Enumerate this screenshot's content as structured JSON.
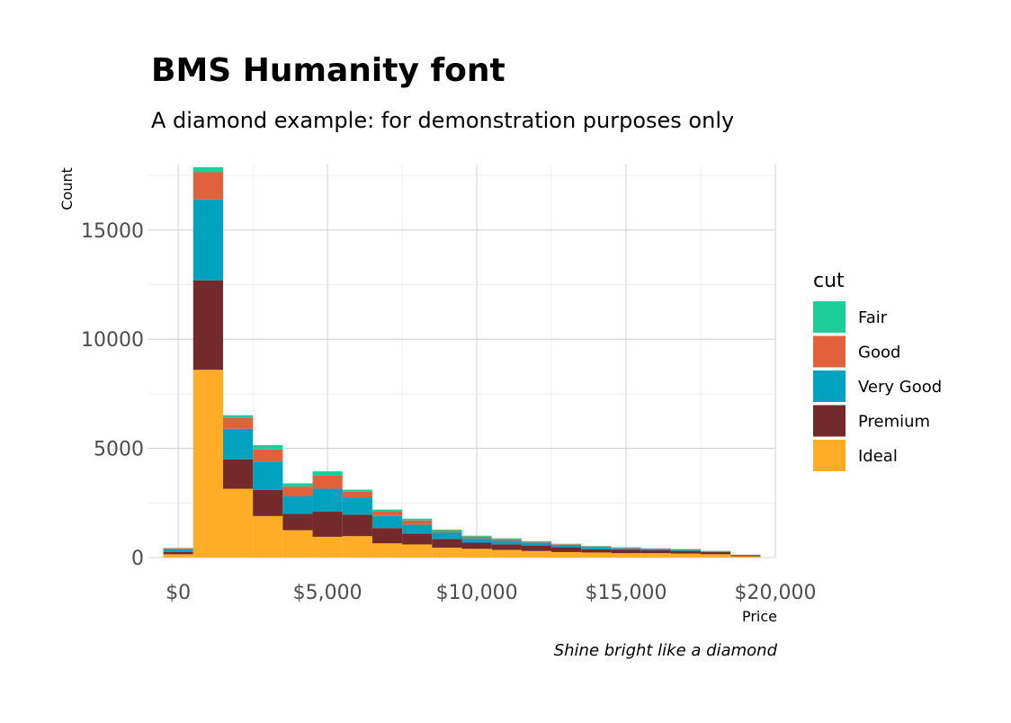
{
  "chart_data": {
    "type": "bar",
    "stacked": true,
    "title": "BMS Humanity font",
    "subtitle": "A diamond example: for demonstration purposes only",
    "caption": "Shine bright like a diamond",
    "xlabel": "Price",
    "ylabel": "Count",
    "xlim": [
      -1000,
      20000
    ],
    "ylim": [
      0,
      18000
    ],
    "x_ticks": [
      0,
      5000,
      10000,
      15000,
      20000
    ],
    "x_tick_labels": [
      "$0",
      "$5,000",
      "$10,000",
      "$15,000",
      "$20,000"
    ],
    "y_ticks": [
      0,
      5000,
      10000,
      15000
    ],
    "y_tick_labels": [
      "0",
      "5000",
      "10000",
      "15000"
    ],
    "grid": true,
    "legend": {
      "title": "cut",
      "position": "right"
    },
    "bin_width": 1000,
    "bin_starts": [
      -500,
      500,
      1500,
      2500,
      3500,
      4500,
      5500,
      6500,
      7500,
      8500,
      9500,
      10500,
      11500,
      12500,
      13500,
      14500,
      15500,
      16500,
      17500,
      18500
    ],
    "series": [
      {
        "name": "Ideal",
        "color": "#FFAD26",
        "values": [
          150,
          8600,
          3150,
          1900,
          1250,
          950,
          980,
          650,
          600,
          450,
          400,
          350,
          300,
          250,
          230,
          200,
          200,
          180,
          150,
          60
        ]
      },
      {
        "name": "Premium",
        "color": "#742A2A",
        "values": [
          100,
          4100,
          1350,
          1200,
          750,
          1150,
          980,
          700,
          500,
          400,
          280,
          250,
          250,
          220,
          150,
          150,
          140,
          120,
          100,
          40
        ]
      },
      {
        "name": "Very Good",
        "color": "#00A2C0",
        "values": [
          130,
          3700,
          1400,
          1300,
          800,
          1050,
          800,
          550,
          400,
          300,
          200,
          180,
          140,
          110,
          100,
          70,
          50,
          50,
          30,
          20
        ]
      },
      {
        "name": "Good",
        "color": "#E0613C",
        "values": [
          50,
          1250,
          500,
          550,
          450,
          600,
          250,
          200,
          200,
          80,
          80,
          70,
          40,
          30,
          30,
          30,
          20,
          30,
          20,
          10
        ]
      },
      {
        "name": "Fair",
        "color": "#1ECE9A",
        "values": [
          10,
          230,
          120,
          200,
          150,
          200,
          100,
          100,
          80,
          50,
          40,
          30,
          20,
          20,
          20,
          20,
          10,
          10,
          10,
          0
        ]
      }
    ]
  }
}
